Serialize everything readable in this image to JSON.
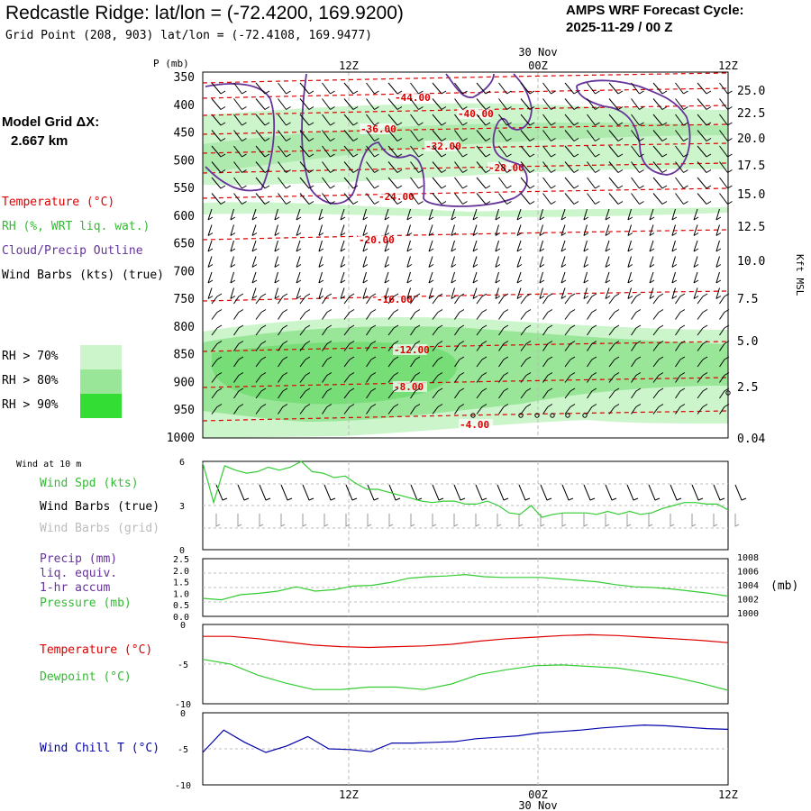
{
  "header": {
    "title": "Redcastle Ridge:  lat/lon = (-72.4200, 169.9200)",
    "subtitle": "Grid Point (208, 903) lat/lon = (-72.4108, 169.9477)",
    "cycle_line1": "AMPS WRF Forecast Cycle:",
    "cycle_line2": "2025-11-29 / 00  Z",
    "grid_label": "Model Grid ΔX:",
    "grid_value": "2.667 km"
  },
  "legend_upper": {
    "temperature": "Temperature (°C)",
    "rh": "RH (%, WRT liq. wat.)",
    "cloud": "Cloud/Precip Outline",
    "wind": "Wind Barbs (kts) (true)",
    "rh70": "RH > 70%",
    "rh80": "RH > 80%",
    "rh90": "RH > 90%"
  },
  "time_axis": {
    "date_label": "30 Nov",
    "ticks": [
      "12Z",
      "00Z",
      "12Z"
    ]
  },
  "colors": {
    "temperature": "#dd0000",
    "rh_green": "#33cc33",
    "cloud_outline": "#663399",
    "wind_chill": "#0000aa",
    "rh70": "#ccf5cc",
    "rh80": "#99e699",
    "rh90": "#33dd33"
  },
  "panel_labels": {
    "wind_at_10m": "Wind at 10 m",
    "wind_spd": "Wind Spd (kts)",
    "wind_barbs_true": "Wind Barbs (true)",
    "wind_barbs_grid": "Wind Barbs (grid)",
    "precip1": "Precip (mm)",
    "precip2": "liq. equiv.",
    "precip3": "1-hr accum",
    "pressure": "Pressure (mb)",
    "pressure_unit": "(mb)",
    "temperature": "Temperature (°C)",
    "dewpoint": "Dewpoint (°C)",
    "wind_chill": "Wind Chill T (°C)"
  },
  "chart_data": [
    {
      "type": "area",
      "name": "Vertical cross-section",
      "y_axis_label": "P (mb)",
      "pressure_ticks": [
        350,
        400,
        450,
        500,
        550,
        600,
        650,
        700,
        750,
        800,
        850,
        900,
        950,
        1000
      ],
      "height_axis_label": "Kft MSL",
      "height_ticks": [
        "25.0",
        "22.5",
        "20.0",
        "17.5",
        "15.0",
        "12.5",
        "10.0",
        "7.5",
        "5.0",
        "2.5",
        "0.04"
      ],
      "temperature_contour_labels": [
        "-44.00",
        "-40.00",
        "-36.00",
        "-32.00",
        "-28.00",
        "-24.00",
        "-20.00",
        "-16.00",
        "-12.00",
        "-8.00",
        "-4.00"
      ]
    },
    {
      "type": "line",
      "name": "Wind speed 10 m",
      "y_ticks": [
        "6",
        "3",
        "0"
      ],
      "ylim": [
        0,
        6
      ],
      "series": [
        {
          "name": "Wind Spd (kts)",
          "values": [
            5.9,
            3.2,
            5.7,
            5.4,
            5.2,
            5.3,
            5.6,
            5.4,
            5.6,
            6.0,
            5.3,
            5.2,
            4.9,
            5.0,
            4.5,
            4.1,
            4.1,
            3.9,
            3.7,
            3.5,
            3.3,
            3.2,
            3.3,
            3.3,
            3.1,
            3.1,
            3.3,
            3.0,
            2.5,
            2.4,
            3.0,
            2.2,
            2.4,
            2.5,
            2.5,
            2.5,
            2.4,
            2.6,
            2.4,
            2.6,
            2.4,
            2.5,
            2.8,
            3.0,
            3.2,
            3.2,
            3.1,
            3.1,
            2.7
          ]
        }
      ]
    },
    {
      "type": "line",
      "name": "Precip and pressure",
      "y_ticks_left": [
        "2.5",
        "2.0",
        "1.5",
        "1.0",
        "0.5",
        "0.0"
      ],
      "y_ticks_right": [
        "1008",
        "1006",
        "1004",
        "1002",
        "1000"
      ],
      "ylim_right": [
        1000,
        1008
      ],
      "series": [
        {
          "name": "Pressure (mb)",
          "values": [
            1002.5,
            1002.3,
            1003.0,
            1003.2,
            1003.5,
            1004.1,
            1003.5,
            1003.7,
            1004.2,
            1004.3,
            1004.7,
            1005.3,
            1005.5,
            1005.6,
            1005.8,
            1005.5,
            1005.4,
            1005.4,
            1005.4,
            1005.2,
            1005.0,
            1004.8,
            1004.4,
            1004.1,
            1004.0,
            1003.8,
            1003.5,
            1003.2,
            1002.8
          ]
        }
      ]
    },
    {
      "type": "line",
      "name": "Temperature and dewpoint",
      "y_ticks": [
        "0",
        "-5",
        "-10"
      ],
      "ylim": [
        -10,
        0
      ],
      "series": [
        {
          "name": "Temperature (°C)",
          "values": [
            -1.5,
            -1.5,
            -1.8,
            -2.2,
            -2.6,
            -2.8,
            -2.9,
            -2.8,
            -2.7,
            -2.5,
            -2.1,
            -1.8,
            -1.6,
            -1.4,
            -1.3,
            -1.4,
            -1.6,
            -1.8,
            -2.0,
            -2.3
          ]
        },
        {
          "name": "Dewpoint (°C)",
          "values": [
            -4.4,
            -5.0,
            -6.4,
            -7.4,
            -8.2,
            -8.2,
            -7.9,
            -7.9,
            -8.2,
            -7.5,
            -6.3,
            -5.7,
            -5.2,
            -5.1,
            -5.3,
            -5.5,
            -6.0,
            -6.6,
            -7.4,
            -8.3
          ]
        }
      ]
    },
    {
      "type": "line",
      "name": "Wind chill",
      "y_ticks": [
        "0",
        "-5",
        "-10"
      ],
      "ylim": [
        -10,
        0
      ],
      "series": [
        {
          "name": "Wind Chill T (°C)",
          "values": [
            -5.5,
            -2.4,
            -4.1,
            -5.5,
            -4.6,
            -3.3,
            -5.0,
            -5.1,
            -5.4,
            -4.2,
            -4.2,
            -4.1,
            -4.0,
            -3.6,
            -3.4,
            -3.2,
            -2.8,
            -2.6,
            -2.4,
            -2.1,
            -1.9,
            -1.7,
            -1.8,
            -2.0,
            -2.2,
            -2.3
          ]
        }
      ]
    }
  ]
}
